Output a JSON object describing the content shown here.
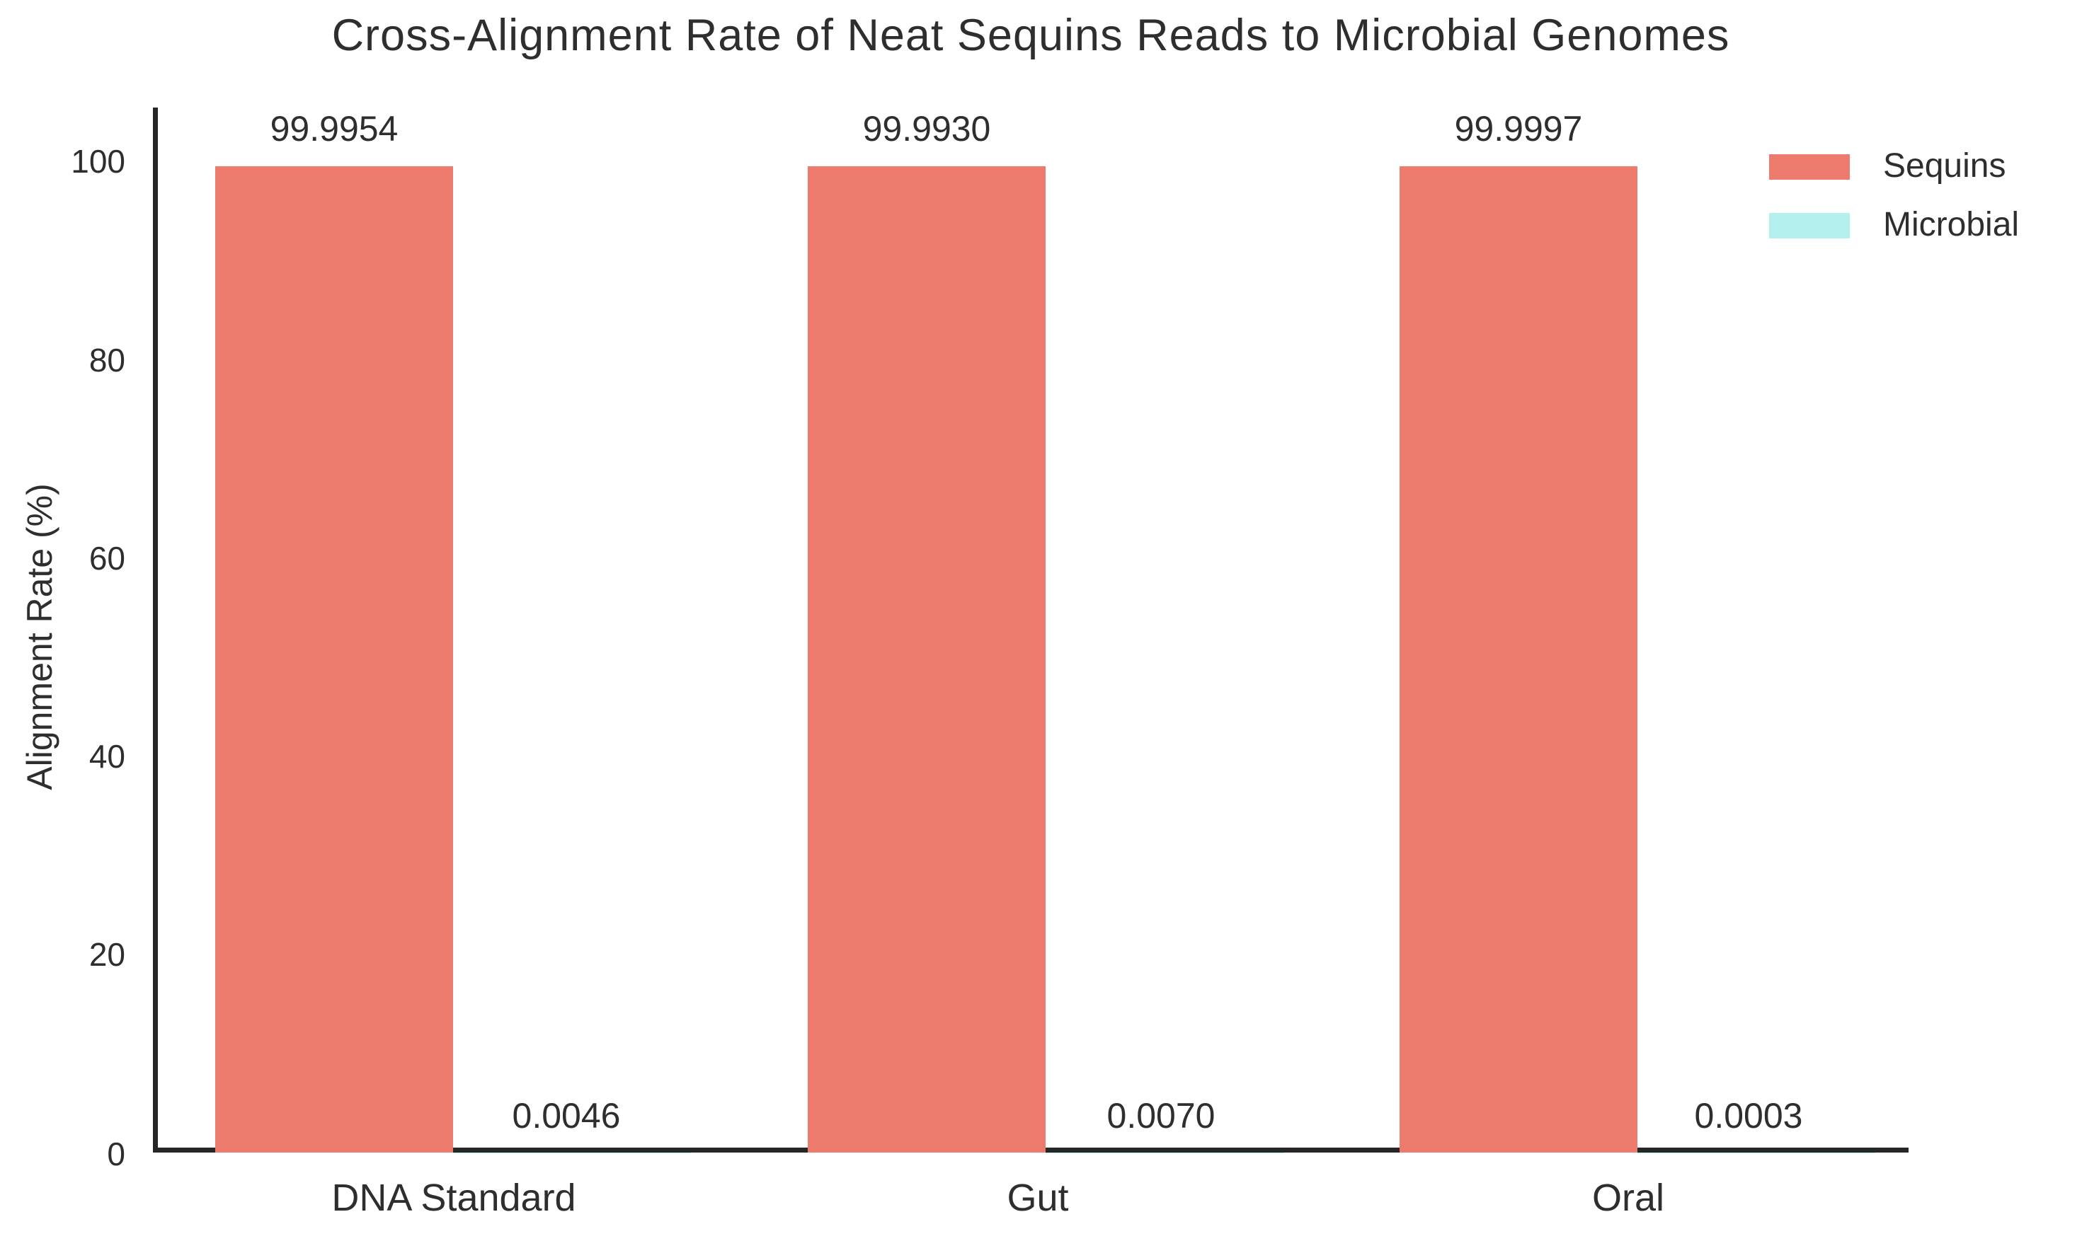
{
  "chart_data": {
    "type": "bar",
    "title": "Cross-Alignment Rate of Neat Sequins Reads to Microbial Genomes",
    "xlabel": "",
    "ylabel": "Alignment Rate (%)",
    "categories": [
      "DNA Standard",
      "Gut",
      "Oral"
    ],
    "series": [
      {
        "name": "Sequins",
        "color": "#EC7B6D",
        "values": [
          99.9954,
          99.993,
          99.9997
        ],
        "value_labels": [
          "99.9954",
          "99.9930",
          "99.9997"
        ]
      },
      {
        "name": "Microbial",
        "color": "#B3F0EE",
        "values": [
          0.0046,
          0.007,
          0.0003
        ],
        "value_labels": [
          "0.0046",
          "0.0070",
          "0.0003"
        ]
      }
    ],
    "ytick_labels": [
      "100",
      "80",
      "60",
      "40",
      "20",
      "0"
    ],
    "yticks": [
      100,
      80,
      60,
      40,
      20,
      0
    ],
    "ylim": [
      0,
      105.4
    ],
    "grid": false,
    "legend_position": "top-right",
    "background_color": "#ffffff",
    "axis_color": "#262626",
    "text_color": "#2e2e2e",
    "bar_value_label_position": "outside-top"
  }
}
